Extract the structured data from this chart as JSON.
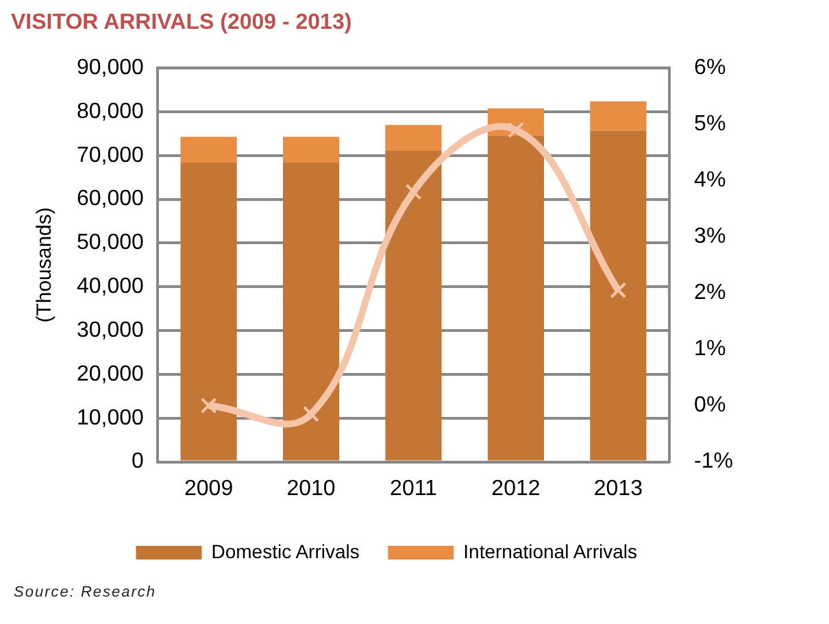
{
  "chart_data": {
    "type": "bar",
    "title": "VISITOR ARRIVALS (2009 - 2013)",
    "ylabel": "(Thousands)",
    "categories": [
      "2009",
      "2010",
      "2011",
      "2012",
      "2013"
    ],
    "series": [
      {
        "name": "Domestic Arrivals",
        "color": "#c47634",
        "values": [
          68400,
          68400,
          71200,
          74600,
          75700
        ]
      },
      {
        "name": "International Arrivals",
        "color": "#e88d41",
        "values": [
          5900,
          5900,
          5800,
          6200,
          6700
        ]
      },
      {
        "type": "line",
        "axis": "y2",
        "color": "#f5c5aa",
        "marker": "cross",
        "values": [
          0.0,
          -0.15,
          3.8,
          4.9,
          2.05
        ]
      }
    ],
    "stacked": true,
    "ylim": [
      0,
      90000
    ],
    "yticks": [
      0,
      {
        "value": 10000,
        "label": "10,000"
      },
      {
        "value": 20000,
        "label": "20,000"
      },
      {
        "value": 30000,
        "label": "30,000"
      },
      {
        "value": 40000,
        "label": "40,000"
      },
      {
        "value": 50000,
        "label": "50,000"
      },
      {
        "value": 60000,
        "label": "60,000"
      },
      {
        "value": 70000,
        "label": "70,000"
      },
      {
        "value": 80000,
        "label": "80,000"
      },
      {
        "value": 90000,
        "label": "90,000"
      }
    ],
    "y2lim": [
      -1,
      6
    ],
    "y2ticks": [
      {
        "value": -1,
        "label": "-1%"
      },
      {
        "value": 0,
        "label": "0%"
      },
      {
        "value": 1,
        "label": "1%"
      },
      {
        "value": 2,
        "label": "2%"
      },
      {
        "value": 3,
        "label": "3%"
      },
      {
        "value": 4,
        "label": "4%"
      },
      {
        "value": 5,
        "label": "5%"
      },
      {
        "value": 6,
        "label": "6%"
      }
    ],
    "grid": "y",
    "legend": "bottom",
    "annotations": [
      "Source: Research"
    ]
  }
}
